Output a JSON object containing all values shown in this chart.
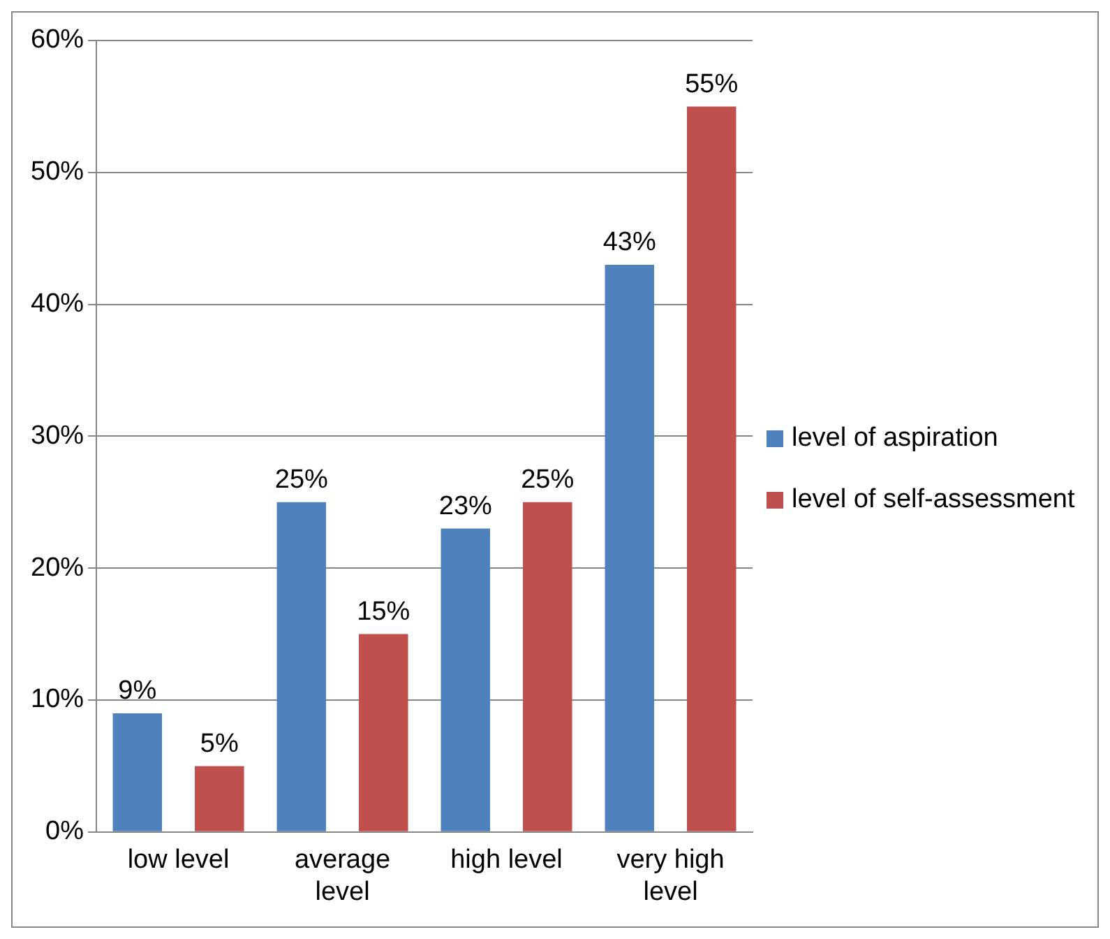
{
  "chart_data": {
    "type": "bar",
    "categories": [
      "low level",
      "average level",
      "high level",
      "very high level"
    ],
    "series": [
      {
        "name": "level of aspiration",
        "color": "#4f81bd",
        "values": [
          9,
          25,
          23,
          43
        ],
        "value_labels": [
          "9%",
          "25%",
          "23%",
          "43%"
        ]
      },
      {
        "name": "level of self-assessment",
        "color": "#c0504d",
        "values": [
          5,
          15,
          25,
          55
        ],
        "value_labels": [
          "5%",
          "15%",
          "25%",
          "55%"
        ]
      }
    ],
    "ylim": [
      0,
      60
    ],
    "yticks": [
      {
        "value": 0,
        "label": "0%"
      },
      {
        "value": 10,
        "label": "10%"
      },
      {
        "value": 20,
        "label": "20%"
      },
      {
        "value": 30,
        "label": "30%"
      },
      {
        "value": 40,
        "label": "40%"
      },
      {
        "value": 50,
        "label": "50%"
      },
      {
        "value": 60,
        "label": "60%"
      }
    ],
    "grid": "y",
    "legend": "right"
  }
}
